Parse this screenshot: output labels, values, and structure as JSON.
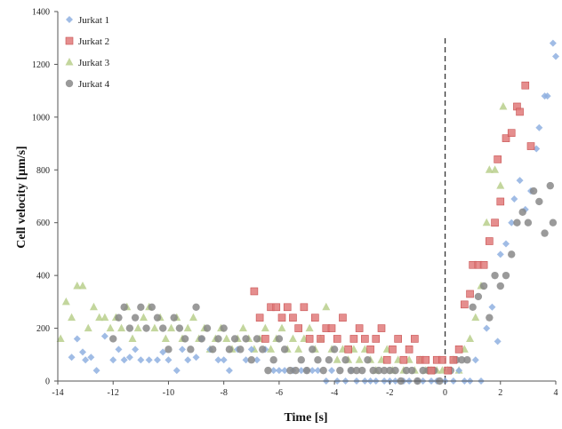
{
  "chart_data": {
    "type": "scatter",
    "title": "",
    "xlabel": "Time [s]",
    "ylabel": "Cell velocity [µm/s]",
    "xlim": [
      -14,
      4
    ],
    "ylim": [
      0,
      1400
    ],
    "xticks": [
      -14,
      -12,
      -10,
      -8,
      -6,
      -4,
      -2,
      0,
      2,
      4
    ],
    "yticks": [
      0,
      200,
      400,
      600,
      800,
      1000,
      1200,
      1400
    ],
    "grid": false,
    "legend_position": "top-left",
    "vline_x": 0,
    "series": [
      {
        "name": "Jurkat 1",
        "color": "#8fb0e0",
        "marker": "diamond",
        "points": [
          [
            -13.5,
            90
          ],
          [
            -13.3,
            160
          ],
          [
            -13.1,
            110
          ],
          [
            -13.0,
            80
          ],
          [
            -12.8,
            90
          ],
          [
            -12.6,
            40
          ],
          [
            -12.3,
            170
          ],
          [
            -12.0,
            80
          ],
          [
            -11.8,
            120
          ],
          [
            -11.6,
            80
          ],
          [
            -11.4,
            90
          ],
          [
            -11.2,
            120
          ],
          [
            -11.0,
            80
          ],
          [
            -10.7,
            80
          ],
          [
            -10.4,
            80
          ],
          [
            -10.2,
            110
          ],
          [
            -10.0,
            80
          ],
          [
            -9.7,
            40
          ],
          [
            -9.5,
            120
          ],
          [
            -9.3,
            80
          ],
          [
            -9.0,
            90
          ],
          [
            -8.8,
            160
          ],
          [
            -8.5,
            120
          ],
          [
            -8.2,
            80
          ],
          [
            -8.0,
            80
          ],
          [
            -7.8,
            40
          ],
          [
            -7.5,
            120
          ],
          [
            -7.2,
            80
          ],
          [
            -7.0,
            120
          ],
          [
            -6.8,
            80
          ],
          [
            -6.5,
            120
          ],
          [
            -6.2,
            40
          ],
          [
            -6.0,
            40
          ],
          [
            -5.8,
            40
          ],
          [
            -5.5,
            40
          ],
          [
            -5.2,
            40
          ],
          [
            -5.0,
            40
          ],
          [
            -4.8,
            40
          ],
          [
            -4.6,
            40
          ],
          [
            -4.3,
            0
          ],
          [
            -4.1,
            40
          ],
          [
            -3.9,
            0
          ],
          [
            -3.6,
            0
          ],
          [
            -3.4,
            40
          ],
          [
            -3.2,
            0
          ],
          [
            -2.9,
            0
          ],
          [
            -2.7,
            0
          ],
          [
            -2.5,
            0
          ],
          [
            -2.2,
            0
          ],
          [
            -2.0,
            0
          ],
          [
            -1.8,
            0
          ],
          [
            -1.5,
            0
          ],
          [
            -1.3,
            0
          ],
          [
            -1.0,
            0
          ],
          [
            -0.8,
            0
          ],
          [
            -0.5,
            0
          ],
          [
            -0.3,
            0
          ],
          [
            0.0,
            0
          ],
          [
            0.3,
            0
          ],
          [
            0.5,
            40
          ],
          [
            0.7,
            0
          ],
          [
            0.9,
            0
          ],
          [
            1.1,
            80
          ],
          [
            1.3,
            0
          ],
          [
            1.5,
            200
          ],
          [
            1.7,
            280
          ],
          [
            1.9,
            150
          ],
          [
            2.0,
            480
          ],
          [
            2.2,
            520
          ],
          [
            2.4,
            600
          ],
          [
            2.5,
            690
          ],
          [
            2.7,
            760
          ],
          [
            2.9,
            650
          ],
          [
            3.1,
            720
          ],
          [
            3.3,
            880
          ],
          [
            3.4,
            960
          ],
          [
            3.6,
            1080
          ],
          [
            3.7,
            1080
          ],
          [
            3.9,
            1280
          ],
          [
            4.0,
            1230
          ]
        ]
      },
      {
        "name": "Jurkat 2",
        "color": "#e07a7a",
        "marker": "square",
        "points": [
          [
            -6.9,
            340
          ],
          [
            -6.7,
            240
          ],
          [
            -6.5,
            160
          ],
          [
            -6.3,
            280
          ],
          [
            -6.1,
            280
          ],
          [
            -5.9,
            240
          ],
          [
            -5.7,
            280
          ],
          [
            -5.5,
            240
          ],
          [
            -5.3,
            200
          ],
          [
            -5.1,
            280
          ],
          [
            -4.9,
            160
          ],
          [
            -4.7,
            240
          ],
          [
            -4.5,
            160
          ],
          [
            -4.3,
            200
          ],
          [
            -4.1,
            200
          ],
          [
            -3.9,
            160
          ],
          [
            -3.7,
            240
          ],
          [
            -3.5,
            120
          ],
          [
            -3.3,
            160
          ],
          [
            -3.1,
            200
          ],
          [
            -2.9,
            160
          ],
          [
            -2.7,
            120
          ],
          [
            -2.5,
            160
          ],
          [
            -2.3,
            200
          ],
          [
            -2.1,
            80
          ],
          [
            -1.9,
            120
          ],
          [
            -1.7,
            160
          ],
          [
            -1.5,
            80
          ],
          [
            -1.3,
            120
          ],
          [
            -1.1,
            160
          ],
          [
            -0.9,
            80
          ],
          [
            -0.7,
            80
          ],
          [
            -0.5,
            40
          ],
          [
            -0.3,
            80
          ],
          [
            -0.1,
            80
          ],
          [
            0.1,
            40
          ],
          [
            0.3,
            80
          ],
          [
            0.5,
            120
          ],
          [
            0.7,
            290
          ],
          [
            0.9,
            330
          ],
          [
            1.0,
            440
          ],
          [
            1.2,
            440
          ],
          [
            1.4,
            440
          ],
          [
            1.6,
            530
          ],
          [
            1.8,
            600
          ],
          [
            1.9,
            840
          ],
          [
            2.0,
            680
          ],
          [
            2.2,
            920
          ],
          [
            2.4,
            940
          ],
          [
            2.6,
            1040
          ],
          [
            2.7,
            1020
          ],
          [
            2.9,
            1120
          ],
          [
            3.1,
            890
          ]
        ]
      },
      {
        "name": "Jurkat 3",
        "color": "#b8cf8c",
        "marker": "triangle",
        "points": [
          [
            -13.9,
            160
          ],
          [
            -13.7,
            300
          ],
          [
            -13.5,
            240
          ],
          [
            -13.3,
            360
          ],
          [
            -13.1,
            360
          ],
          [
            -12.9,
            200
          ],
          [
            -12.7,
            280
          ],
          [
            -12.5,
            240
          ],
          [
            -12.3,
            240
          ],
          [
            -12.1,
            200
          ],
          [
            -11.9,
            240
          ],
          [
            -11.7,
            200
          ],
          [
            -11.5,
            280
          ],
          [
            -11.3,
            160
          ],
          [
            -11.1,
            200
          ],
          [
            -10.9,
            240
          ],
          [
            -10.7,
            280
          ],
          [
            -10.5,
            200
          ],
          [
            -10.3,
            240
          ],
          [
            -10.1,
            160
          ],
          [
            -9.9,
            200
          ],
          [
            -9.7,
            240
          ],
          [
            -9.5,
            160
          ],
          [
            -9.3,
            200
          ],
          [
            -9.1,
            240
          ],
          [
            -8.9,
            160
          ],
          [
            -8.7,
            200
          ],
          [
            -8.5,
            120
          ],
          [
            -8.3,
            160
          ],
          [
            -8.1,
            200
          ],
          [
            -7.9,
            160
          ],
          [
            -7.7,
            120
          ],
          [
            -7.5,
            160
          ],
          [
            -7.3,
            200
          ],
          [
            -7.1,
            160
          ],
          [
            -6.9,
            120
          ],
          [
            -6.7,
            160
          ],
          [
            -6.5,
            200
          ],
          [
            -6.3,
            120
          ],
          [
            -6.1,
            160
          ],
          [
            -5.9,
            200
          ],
          [
            -5.7,
            120
          ],
          [
            -5.5,
            160
          ],
          [
            -5.3,
            120
          ],
          [
            -5.1,
            160
          ],
          [
            -4.9,
            200
          ],
          [
            -4.7,
            120
          ],
          [
            -4.5,
            160
          ],
          [
            -4.3,
            280
          ],
          [
            -4.1,
            120
          ],
          [
            -3.9,
            80
          ],
          [
            -3.7,
            120
          ],
          [
            -3.5,
            80
          ],
          [
            -3.3,
            120
          ],
          [
            -3.1,
            80
          ],
          [
            -2.9,
            120
          ],
          [
            -2.7,
            80
          ],
          [
            -2.5,
            40
          ],
          [
            -2.3,
            80
          ],
          [
            -2.1,
            120
          ],
          [
            -1.9,
            40
          ],
          [
            -1.7,
            80
          ],
          [
            -1.5,
            40
          ],
          [
            -1.3,
            80
          ],
          [
            -1.1,
            40
          ],
          [
            -0.9,
            80
          ],
          [
            -0.7,
            40
          ],
          [
            -0.5,
            40
          ],
          [
            -0.3,
            40
          ],
          [
            -0.1,
            40
          ],
          [
            0.1,
            40
          ],
          [
            0.3,
            80
          ],
          [
            0.5,
            40
          ],
          [
            0.7,
            120
          ],
          [
            0.9,
            160
          ],
          [
            1.1,
            240
          ],
          [
            1.3,
            360
          ],
          [
            1.5,
            600
          ],
          [
            1.6,
            800
          ],
          [
            1.8,
            800
          ],
          [
            2.0,
            740
          ],
          [
            2.1,
            1040
          ]
        ]
      },
      {
        "name": "Jurkat 4",
        "color": "#888888",
        "marker": "circle",
        "points": [
          [
            -12.0,
            160
          ],
          [
            -11.8,
            240
          ],
          [
            -11.6,
            280
          ],
          [
            -11.4,
            200
          ],
          [
            -11.2,
            240
          ],
          [
            -11.0,
            280
          ],
          [
            -10.8,
            200
          ],
          [
            -10.6,
            280
          ],
          [
            -10.4,
            240
          ],
          [
            -10.2,
            200
          ],
          [
            -10.0,
            120
          ],
          [
            -9.8,
            240
          ],
          [
            -9.6,
            200
          ],
          [
            -9.4,
            160
          ],
          [
            -9.2,
            120
          ],
          [
            -9.0,
            280
          ],
          [
            -8.8,
            160
          ],
          [
            -8.6,
            200
          ],
          [
            -8.4,
            120
          ],
          [
            -8.2,
            160
          ],
          [
            -8.0,
            200
          ],
          [
            -7.8,
            120
          ],
          [
            -7.6,
            160
          ],
          [
            -7.4,
            120
          ],
          [
            -7.2,
            160
          ],
          [
            -7.0,
            80
          ],
          [
            -6.8,
            160
          ],
          [
            -6.6,
            120
          ],
          [
            -6.4,
            40
          ],
          [
            -6.2,
            80
          ],
          [
            -6.0,
            160
          ],
          [
            -5.8,
            120
          ],
          [
            -5.6,
            40
          ],
          [
            -5.4,
            40
          ],
          [
            -5.2,
            80
          ],
          [
            -5.0,
            40
          ],
          [
            -4.8,
            120
          ],
          [
            -4.6,
            80
          ],
          [
            -4.4,
            40
          ],
          [
            -4.2,
            80
          ],
          [
            -4.0,
            120
          ],
          [
            -3.8,
            40
          ],
          [
            -3.6,
            80
          ],
          [
            -3.4,
            40
          ],
          [
            -3.2,
            40
          ],
          [
            -3.0,
            40
          ],
          [
            -2.8,
            80
          ],
          [
            -2.6,
            40
          ],
          [
            -2.4,
            40
          ],
          [
            -2.2,
            40
          ],
          [
            -2.0,
            40
          ],
          [
            -1.8,
            40
          ],
          [
            -1.6,
            0
          ],
          [
            -1.4,
            40
          ],
          [
            -1.2,
            40
          ],
          [
            -1.0,
            0
          ],
          [
            -0.8,
            40
          ],
          [
            -0.6,
            40
          ],
          [
            -0.4,
            40
          ],
          [
            -0.2,
            0
          ],
          [
            0.2,
            40
          ],
          [
            0.4,
            80
          ],
          [
            0.6,
            80
          ],
          [
            0.8,
            80
          ],
          [
            1.0,
            280
          ],
          [
            1.2,
            320
          ],
          [
            1.4,
            360
          ],
          [
            1.6,
            240
          ],
          [
            1.8,
            400
          ],
          [
            2.0,
            360
          ],
          [
            2.2,
            400
          ],
          [
            2.4,
            480
          ],
          [
            2.6,
            600
          ],
          [
            2.8,
            640
          ],
          [
            3.0,
            600
          ],
          [
            3.2,
            720
          ],
          [
            3.4,
            680
          ],
          [
            3.6,
            560
          ],
          [
            3.8,
            740
          ],
          [
            3.9,
            600
          ]
        ]
      }
    ]
  }
}
